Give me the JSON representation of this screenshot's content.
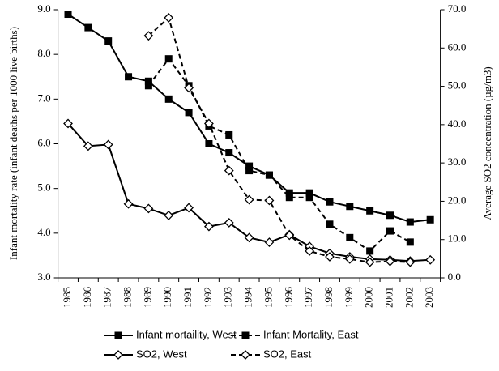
{
  "chart_data": {
    "type": "line",
    "ylabel": "Infant mortality rate (infant deaths per 1000 live births)",
    "y2label": "Average SO2 concentration (µg/m3)",
    "categories": [
      "1985",
      "1986",
      "1987",
      "1988",
      "1989",
      "1990",
      "1991",
      "1992",
      "1993",
      "1994",
      "1995",
      "1996",
      "1997",
      "1998",
      "1999",
      "2000",
      "2001",
      "2002",
      "2003"
    ],
    "ylim": [
      3,
      9
    ],
    "yticks": [
      {
        "value": 3,
        "label": "3.0"
      },
      {
        "value": 4,
        "label": "4.0"
      },
      {
        "value": 5,
        "label": "5.0"
      },
      {
        "value": 6,
        "label": "6.0"
      },
      {
        "value": 7,
        "label": "7.0"
      },
      {
        "value": 8,
        "label": "8.0"
      },
      {
        "value": 9,
        "label": "9.0"
      }
    ],
    "y2lim": [
      0,
      70
    ],
    "y2ticks": [
      {
        "value": 0,
        "label": "0.0"
      },
      {
        "value": 10,
        "label": "10.0"
      },
      {
        "value": 20,
        "label": "20.0"
      },
      {
        "value": 30,
        "label": "30.0"
      },
      {
        "value": 40,
        "label": "40.0"
      },
      {
        "value": 50,
        "label": "50.0"
      },
      {
        "value": 60,
        "label": "60.0"
      },
      {
        "value": 70,
        "label": "70.0"
      }
    ],
    "grid": false,
    "series": [
      {
        "name": "Infant mortaility, West",
        "color": "#000000",
        "marker": "square",
        "line_style": "solid",
        "values": [
          8.9,
          8.6,
          8.3,
          7.5,
          7.4,
          7.0,
          6.7,
          6.0,
          5.8,
          5.5,
          5.3,
          4.9,
          4.9,
          4.7,
          4.6,
          4.5,
          4.4,
          4.25,
          4.3
        ]
      },
      {
        "name": "Infant Mortality, East",
        "color": "#000000",
        "marker": "square",
        "line_style": "dashed",
        "values": [
          null,
          null,
          null,
          null,
          7.3,
          7.9,
          7.3,
          6.4,
          6.2,
          5.4,
          5.3,
          4.8,
          4.8,
          4.2,
          3.9,
          3.6,
          4.05,
          3.8,
          null
        ]
      },
      {
        "name": "SO2, West",
        "color": "#000000",
        "marker": "diamond",
        "line_style": "solid",
        "axis": "y2",
        "values": [
          40.3,
          34.4,
          34.8,
          19.3,
          18.1,
          16.3,
          18.3,
          13.4,
          14.4,
          10.5,
          9.3,
          11.3,
          8.2,
          6.4,
          5.5,
          4.9,
          4.7,
          4.4,
          4.7
        ]
      },
      {
        "name": "SO2, East",
        "color": "#000000",
        "marker": "diamond",
        "line_style": "dashed",
        "axis": "y2",
        "values": [
          null,
          null,
          null,
          null,
          63.2,
          67.9,
          49.6,
          40.3,
          28.0,
          20.4,
          20.2,
          11.1,
          7.0,
          5.5,
          4.9,
          4.1,
          4.3,
          4.1,
          null
        ]
      }
    ]
  }
}
